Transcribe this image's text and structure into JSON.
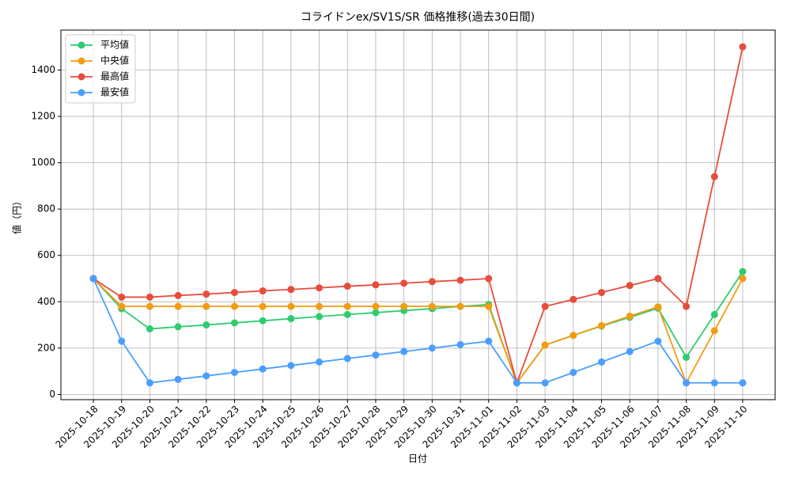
{
  "chart_data": {
    "type": "line",
    "title": "コライドンex/SV1S/SR 価格推移(過去30日間)",
    "x_label": "日付",
    "y_label": "値（円）",
    "categories": [
      "2025-10-18",
      "2025-10-19",
      "2025-10-20",
      "2025-10-21",
      "2025-10-22",
      "2025-10-23",
      "2025-10-24",
      "2025-10-25",
      "2025-10-26",
      "2025-10-27",
      "2025-10-28",
      "2025-10-29",
      "2025-10-30",
      "2025-10-31",
      "2025-11-01",
      "2025-11-02",
      "2025-11-03",
      "2025-11-04",
      "2025-11-05",
      "2025-11-06",
      "2025-11-07",
      "2025-11-08",
      "2025-11-09",
      "2025-11-10"
    ],
    "series": [
      {
        "name": "平均値",
        "color": "#2ecc71",
        "values": [
          500,
          370,
          283,
          292,
          300,
          309,
          318,
          327,
          336,
          345,
          353,
          362,
          370,
          380,
          388,
          50,
          213,
          255,
          295,
          333,
          372,
          160,
          345,
          530
        ]
      },
      {
        "name": "中央値",
        "color": "#f39c12",
        "values": [
          500,
          380,
          380,
          380,
          380,
          380,
          380,
          380,
          380,
          380,
          380,
          380,
          380,
          380,
          380,
          50,
          213,
          255,
          297,
          338,
          378,
          50,
          275,
          500
        ]
      },
      {
        "name": "最高値",
        "color": "#e74c3c",
        "values": [
          500,
          420,
          420,
          427,
          433,
          440,
          447,
          453,
          460,
          467,
          473,
          480,
          487,
          493,
          500,
          50,
          380,
          410,
          440,
          470,
          500,
          380,
          940,
          1500
        ]
      },
      {
        "name": "最安値",
        "color": "#4a9eff",
        "values": [
          500,
          230,
          50,
          65,
          80,
          95,
          110,
          125,
          140,
          155,
          170,
          185,
          200,
          215,
          230,
          50,
          50,
          95,
          140,
          185,
          230,
          50,
          50,
          50
        ]
      }
    ],
    "ylim": [
      -22.5,
      1572.5
    ],
    "yticks": [
      0,
      200,
      400,
      600,
      800,
      1000,
      1200,
      1400
    ],
    "grid": true,
    "legend": "upper-left"
  }
}
